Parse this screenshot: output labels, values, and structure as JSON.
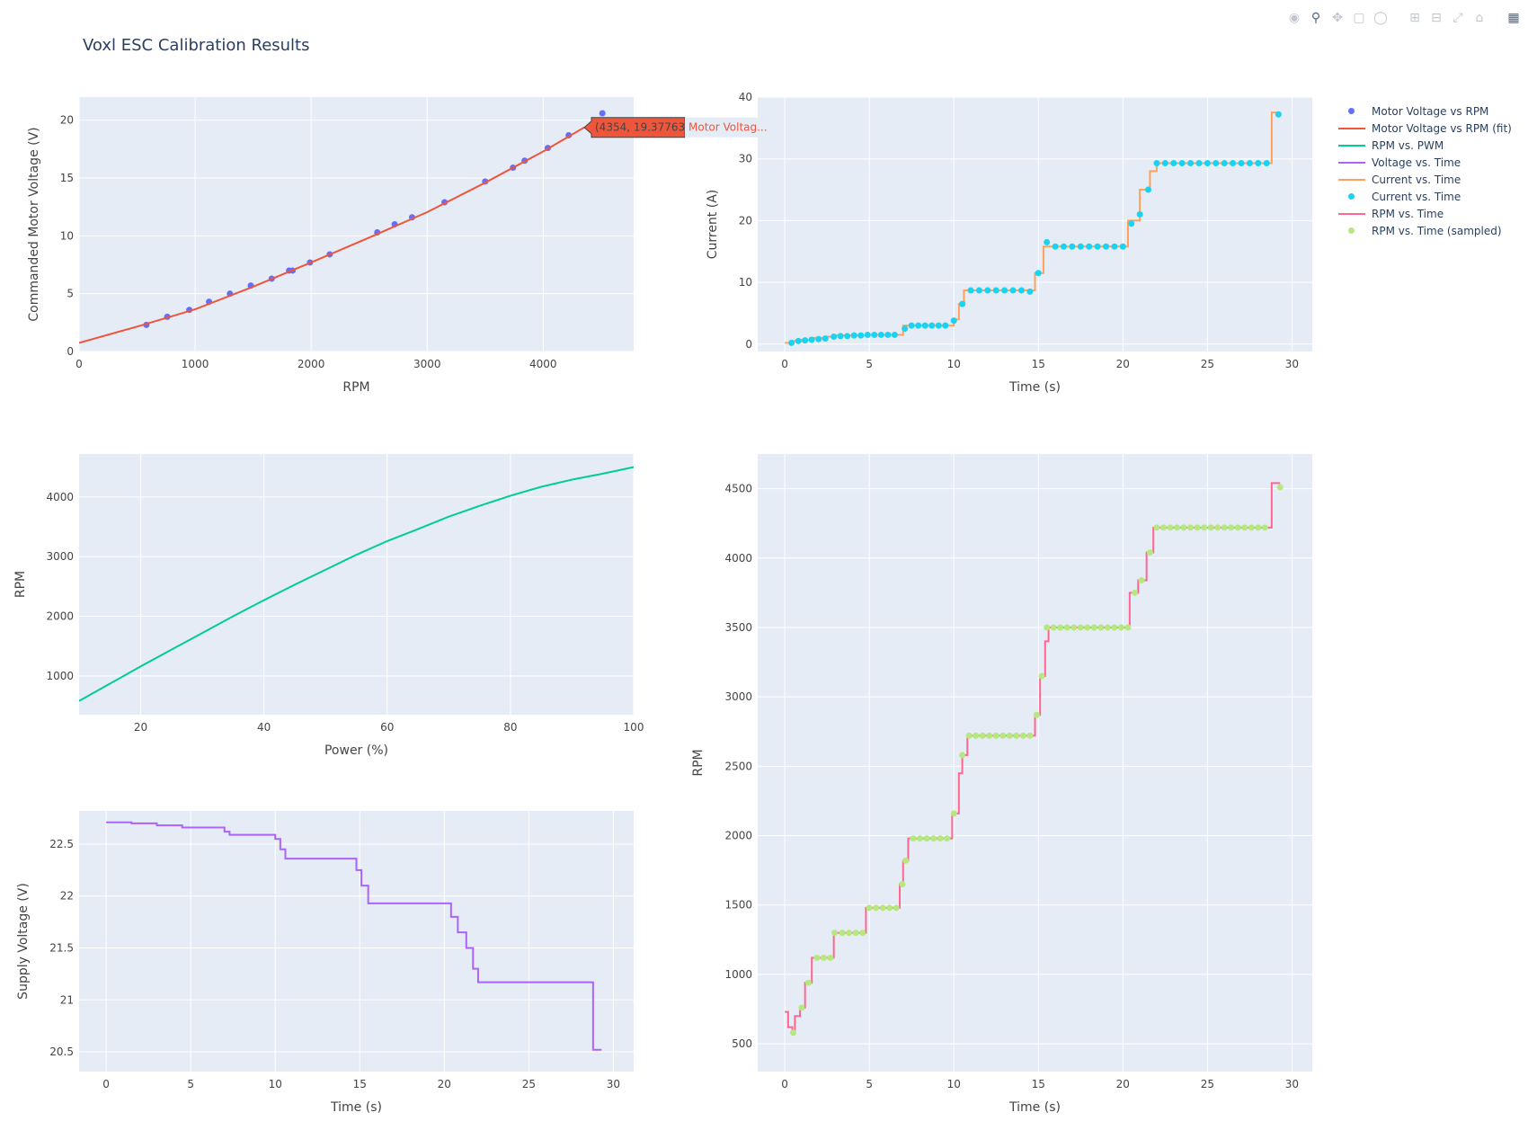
{
  "title": "Voxl ESC Calibration Results",
  "modebar": {
    "icons": [
      "camera-icon",
      "zoom-icon",
      "pan-icon",
      "box-select-icon",
      "lasso-icon",
      "zoom-in-icon",
      "zoom-out-icon",
      "autoscale-icon",
      "home-icon",
      "plotly-logo-icon"
    ]
  },
  "colors": {
    "plot_bg": "#e5ecf6",
    "grid": "#ffffff",
    "voltage_rpm_pts": "#636efa",
    "voltage_rpm_fit": "#ef553b",
    "rpm_pwm": "#00cc96",
    "voltage_time": "#ab63fa",
    "current_time_line": "#ffa15a",
    "current_time_pts": "#19d3f3",
    "rpm_time_line": "#ff6692",
    "rpm_time_pts": "#b6e880"
  },
  "legend": [
    {
      "label": "Motor Voltage vs RPM",
      "color": "#636efa",
      "mode": "markers"
    },
    {
      "label": "Motor Voltage vs RPM (fit)",
      "color": "#ef553b",
      "mode": "lines"
    },
    {
      "label": "RPM vs. PWM",
      "color": "#00cc96",
      "mode": "lines"
    },
    {
      "label": "Voltage vs. Time",
      "color": "#ab63fa",
      "mode": "lines"
    },
    {
      "label": "Current vs. Time",
      "color": "#ffa15a",
      "mode": "lines"
    },
    {
      "label": "Current vs. Time",
      "color": "#19d3f3",
      "mode": "markers"
    },
    {
      "label": "RPM vs. Time",
      "color": "#ff6692",
      "mode": "lines"
    },
    {
      "label": "RPM vs. Time (sampled)",
      "color": "#b6e880",
      "mode": "markers"
    }
  ],
  "hover": {
    "text": "(4354, 19.37763)",
    "name": "Motor Voltag..."
  },
  "chart_data": [
    {
      "type": "scatter",
      "xlabel": "RPM",
      "ylabel": "Commanded Motor Voltage (V)",
      "xlim": [
        0,
        4780
      ],
      "ylim": [
        0,
        22
      ],
      "xticks": [
        0,
        1000,
        2000,
        3000,
        4000
      ],
      "yticks": [
        0,
        5,
        10,
        15,
        20
      ],
      "grid": true,
      "series": [
        {
          "name": "Motor Voltage vs RPM",
          "mode": "markers",
          "x": [
            580,
            760,
            950,
            1120,
            1300,
            1480,
            1660,
            1810,
            1840,
            1990,
            2160,
            2570,
            2720,
            2870,
            3150,
            3500,
            3740,
            3840,
            4040,
            4220,
            4510
          ],
          "y": [
            2.3,
            3.0,
            3.6,
            4.3,
            5.0,
            5.7,
            6.3,
            7.0,
            7.0,
            7.7,
            8.4,
            10.3,
            11.0,
            11.6,
            12.9,
            14.7,
            15.9,
            16.5,
            17.6,
            18.7,
            20.6
          ]
        },
        {
          "name": "Motor Voltage vs RPM (fit)",
          "mode": "lines",
          "x": [
            0,
            500,
            1000,
            1500,
            2000,
            2500,
            3000,
            3500,
            4000,
            4354
          ],
          "y": [
            0.75,
            2.15,
            3.65,
            5.6,
            7.7,
            9.85,
            12.05,
            14.6,
            17.3,
            19.38
          ]
        }
      ]
    },
    {
      "type": "line",
      "xlabel": "Time (s)",
      "ylabel": "Current (A)",
      "xlim": [
        -1.6,
        31.2
      ],
      "ylim": [
        -1.2,
        40
      ],
      "xticks": [
        0,
        5,
        10,
        15,
        20,
        25,
        30
      ],
      "yticks": [
        0,
        10,
        20,
        30,
        40
      ],
      "grid": true,
      "series": [
        {
          "name": "Current vs. Time",
          "mode": "lines",
          "steps": [
            [
              0,
              0.2
            ],
            [
              0.5,
              0.5
            ],
            [
              1.0,
              0.7
            ],
            [
              1.5,
              1.0
            ],
            [
              2.5,
              1.2
            ],
            [
              3.0,
              1.4
            ],
            [
              4.8,
              1.5
            ],
            [
              7.0,
              3.0
            ],
            [
              10.0,
              4.0
            ],
            [
              10.3,
              6.5
            ],
            [
              10.6,
              8.7
            ],
            [
              14.5,
              8.7
            ],
            [
              14.8,
              11.5
            ],
            [
              15.3,
              15.8
            ],
            [
              20.3,
              20.0
            ],
            [
              21.0,
              25.0
            ],
            [
              21.6,
              28.0
            ],
            [
              22.0,
              29.3
            ],
            [
              28.8,
              37.5
            ],
            [
              29.3,
              37.5
            ]
          ]
        },
        {
          "name": "Current vs. Time",
          "mode": "markers",
          "x": [
            0.4,
            0.8,
            1.2,
            1.6,
            2.0,
            2.4,
            2.9,
            3.3,
            3.7,
            4.1,
            4.5,
            4.9,
            5.3,
            5.7,
            6.1,
            6.5,
            7.1,
            7.5,
            7.9,
            8.3,
            8.7,
            9.1,
            9.5,
            10.0,
            10.5,
            11.0,
            11.5,
            12.0,
            12.5,
            13.0,
            13.5,
            14.0,
            14.5,
            15.0,
            15.5,
            16.0,
            16.5,
            17.0,
            17.5,
            18.0,
            18.5,
            19.0,
            19.5,
            20.0,
            20.5,
            21.0,
            21.5,
            22.0,
            22.5,
            23.0,
            23.5,
            24.0,
            24.5,
            25.0,
            25.5,
            26.0,
            26.5,
            27.0,
            27.5,
            28.0,
            28.5,
            29.2
          ],
          "y": [
            0.2,
            0.5,
            0.6,
            0.7,
            0.8,
            0.9,
            1.2,
            1.3,
            1.3,
            1.4,
            1.4,
            1.5,
            1.5,
            1.5,
            1.5,
            1.5,
            2.5,
            3.0,
            3.0,
            3.0,
            3.0,
            3.0,
            3.0,
            3.8,
            6.5,
            8.7,
            8.7,
            8.7,
            8.7,
            8.7,
            8.7,
            8.7,
            8.5,
            11.5,
            16.5,
            15.8,
            15.8,
            15.8,
            15.8,
            15.8,
            15.8,
            15.8,
            15.8,
            15.8,
            19.5,
            21.0,
            25.0,
            29.3,
            29.3,
            29.3,
            29.3,
            29.3,
            29.3,
            29.3,
            29.3,
            29.3,
            29.3,
            29.3,
            29.3,
            29.3,
            29.3,
            37.2
          ]
        }
      ]
    },
    {
      "type": "line",
      "xlabel": "Power (%)",
      "ylabel": "RPM",
      "xlim": [
        10,
        100
      ],
      "ylim": [
        350,
        4720
      ],
      "xticks": [
        20,
        40,
        60,
        80,
        100
      ],
      "yticks": [
        1000,
        2000,
        3000,
        4000
      ],
      "grid": true,
      "series": [
        {
          "name": "RPM vs. PWM",
          "mode": "lines",
          "x": [
            10,
            15,
            20,
            25,
            30,
            35,
            40,
            45,
            50,
            55,
            60,
            65,
            70,
            75,
            80,
            85,
            90,
            95,
            100
          ],
          "y": [
            580,
            870,
            1160,
            1440,
            1720,
            2000,
            2270,
            2530,
            2780,
            3030,
            3260,
            3460,
            3670,
            3850,
            4020,
            4170,
            4290,
            4390,
            4500
          ]
        }
      ]
    },
    {
      "type": "line",
      "xlabel": "Time (s)",
      "ylabel": "Supply Voltage (V)",
      "xlim": [
        -1.6,
        31.2
      ],
      "ylim": [
        20.31,
        22.82
      ],
      "xticks": [
        0,
        5,
        10,
        15,
        20,
        25,
        30
      ],
      "yticks": [
        20.5,
        21,
        21.5,
        22,
        22.5
      ],
      "grid": true,
      "series": [
        {
          "name": "Voltage vs. Time",
          "mode": "lines",
          "steps": [
            [
              0,
              22.71
            ],
            [
              1.5,
              22.7
            ],
            [
              3.0,
              22.68
            ],
            [
              4.5,
              22.66
            ],
            [
              7.0,
              22.62
            ],
            [
              7.3,
              22.59
            ],
            [
              10.0,
              22.55
            ],
            [
              10.3,
              22.45
            ],
            [
              10.6,
              22.36
            ],
            [
              14.5,
              22.36
            ],
            [
              14.8,
              22.25
            ],
            [
              15.1,
              22.1
            ],
            [
              15.5,
              21.93
            ],
            [
              20.4,
              21.8
            ],
            [
              20.8,
              21.65
            ],
            [
              21.3,
              21.5
            ],
            [
              21.7,
              21.3
            ],
            [
              22.0,
              21.17
            ],
            [
              28.8,
              20.52
            ],
            [
              29.3,
              20.52
            ]
          ]
        }
      ]
    },
    {
      "type": "line",
      "xlabel": "Time (s)",
      "ylabel": "RPM",
      "xlim": [
        -1.6,
        31.2
      ],
      "ylim": [
        300,
        4750
      ],
      "xticks": [
        0,
        5,
        10,
        15,
        20,
        25,
        30
      ],
      "yticks": [
        500,
        1000,
        1500,
        2000,
        2500,
        3000,
        3500,
        4000,
        4500
      ],
      "grid": true,
      "series": [
        {
          "name": "RPM vs. Time",
          "mode": "lines",
          "steps": [
            [
              0,
              730
            ],
            [
              0.2,
              620
            ],
            [
              0.45,
              580
            ],
            [
              0.6,
              700
            ],
            [
              0.9,
              760
            ],
            [
              1.2,
              940
            ],
            [
              1.6,
              1120
            ],
            [
              2.9,
              1300
            ],
            [
              4.8,
              1480
            ],
            [
              6.8,
              1650
            ],
            [
              7.0,
              1820
            ],
            [
              7.3,
              1980
            ],
            [
              9.9,
              2160
            ],
            [
              10.3,
              2450
            ],
            [
              10.5,
              2580
            ],
            [
              10.8,
              2720
            ],
            [
              14.8,
              2870
            ],
            [
              15.1,
              3150
            ],
            [
              15.4,
              3400
            ],
            [
              15.6,
              3500
            ],
            [
              20.4,
              3750
            ],
            [
              20.9,
              3840
            ],
            [
              21.4,
              4040
            ],
            [
              21.8,
              4220
            ],
            [
              28.8,
              4540
            ],
            [
              29.3,
              4540
            ]
          ]
        },
        {
          "name": "RPM vs. Time (sampled)",
          "mode": "markers",
          "x": [
            0.5,
            1.0,
            1.4,
            1.9,
            2.3,
            2.7,
            2.95,
            3.4,
            3.8,
            4.2,
            4.6,
            5.0,
            5.4,
            5.8,
            6.2,
            6.6,
            6.95,
            7.15,
            7.6,
            8.0,
            8.4,
            8.8,
            9.2,
            9.6,
            10.0,
            10.5,
            10.9,
            11.3,
            11.7,
            12.1,
            12.5,
            12.9,
            13.3,
            13.7,
            14.1,
            14.5,
            14.9,
            15.2,
            15.5,
            15.9,
            16.3,
            16.7,
            17.1,
            17.5,
            17.9,
            18.3,
            18.7,
            19.1,
            19.5,
            19.9,
            20.3,
            20.7,
            21.1,
            21.6,
            22.0,
            22.4,
            22.8,
            23.2,
            23.6,
            24.0,
            24.4,
            24.8,
            25.2,
            25.6,
            26.0,
            26.4,
            26.8,
            27.2,
            27.6,
            28.0,
            28.4,
            29.3
          ],
          "y": [
            580,
            760,
            940,
            1120,
            1120,
            1120,
            1300,
            1300,
            1300,
            1300,
            1300,
            1480,
            1480,
            1480,
            1480,
            1480,
            1650,
            1820,
            1980,
            1980,
            1980,
            1980,
            1980,
            1980,
            2160,
            2580,
            2720,
            2720,
            2720,
            2720,
            2720,
            2720,
            2720,
            2720,
            2720,
            2720,
            2870,
            3150,
            3500,
            3500,
            3500,
            3500,
            3500,
            3500,
            3500,
            3500,
            3500,
            3500,
            3500,
            3500,
            3500,
            3750,
            3840,
            4040,
            4220,
            4220,
            4220,
            4220,
            4220,
            4220,
            4220,
            4220,
            4220,
            4220,
            4220,
            4220,
            4220,
            4220,
            4220,
            4220,
            4220,
            4510
          ]
        }
      ]
    }
  ]
}
